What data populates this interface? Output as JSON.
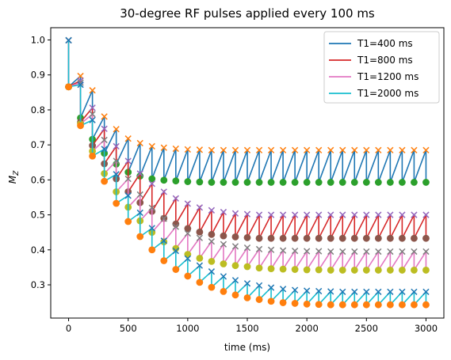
{
  "chart_data": {
    "type": "line",
    "title": "30-degree RF pulses applied every 100 ms",
    "xlabel": "time (ms)",
    "ylabel": "M",
    "ylabel_sub": "Z",
    "xlim": [
      -150,
      3150
    ],
    "ylim": [
      0.205,
      1.035
    ],
    "xticks": [
      0,
      500,
      1000,
      1500,
      2000,
      2500,
      3000
    ],
    "yticks": [
      0.3,
      0.4,
      0.5,
      0.6,
      0.7,
      0.8,
      0.9,
      1.0
    ],
    "xtick_labels": [
      "0",
      "500",
      "1000",
      "1500",
      "2000",
      "2500",
      "3000"
    ],
    "ytick_labels": [
      "0.3",
      "0.4",
      "0.5",
      "0.6",
      "0.7",
      "0.8",
      "0.9",
      "1.0"
    ],
    "grid": false,
    "legend_position": "top-right",
    "series": [
      {
        "name": "T1=400 ms",
        "color": "#1f77b4",
        "pre_color": "#ff7f0e",
        "post_color": "#2ca02c",
        "pre_pulse_x": [
          0.999,
          0.897,
          0.856,
          0.781,
          0.745,
          0.718,
          0.705,
          0.696,
          0.692,
          0.689,
          0.687,
          0.686,
          0.685,
          0.685,
          0.685,
          0.685,
          0.685,
          0.685,
          0.685,
          0.685,
          0.685,
          0.685,
          0.685,
          0.685,
          0.685,
          0.685,
          0.685,
          0.685,
          0.685,
          0.685,
          0.685
        ],
        "post_pulse_dot": [
          0.866,
          0.777,
          0.716,
          0.676,
          0.645,
          0.622,
          0.611,
          0.603,
          0.599,
          0.597,
          0.595,
          0.594,
          0.593,
          0.593,
          0.593,
          0.593,
          0.593,
          0.593,
          0.593,
          0.593,
          0.593,
          0.593,
          0.593,
          0.593,
          0.593,
          0.593,
          0.593,
          0.593,
          0.593,
          0.593,
          0.593
        ]
      },
      {
        "name": "T1=800 ms",
        "color": "#d62728",
        "pre_color": "#9467bd",
        "post_color": "#8c564b",
        "pre_pulse_x": [
          0.999,
          0.884,
          0.806,
          0.746,
          0.696,
          0.654,
          0.618,
          0.589,
          0.566,
          0.547,
          0.532,
          0.521,
          0.513,
          0.508,
          0.504,
          0.502,
          0.5,
          0.5,
          0.5,
          0.5,
          0.5,
          0.5,
          0.5,
          0.5,
          0.5,
          0.5,
          0.5,
          0.5,
          0.5,
          0.5,
          0.5
        ],
        "post_pulse_dot": [
          0.866,
          0.765,
          0.698,
          0.646,
          0.603,
          0.566,
          0.535,
          0.51,
          0.49,
          0.474,
          0.461,
          0.451,
          0.444,
          0.44,
          0.437,
          0.435,
          0.433,
          0.433,
          0.433,
          0.433,
          0.433,
          0.433,
          0.433,
          0.433,
          0.433,
          0.433,
          0.433,
          0.433,
          0.433,
          0.433,
          0.433
        ]
      },
      {
        "name": "T1=1200 ms",
        "color": "#e377c2",
        "pre_color": "#7f7f7f",
        "post_color": "#bcbd22",
        "pre_pulse_x": [
          0.999,
          0.878,
          0.788,
          0.714,
          0.654,
          0.603,
          0.558,
          0.52,
          0.489,
          0.466,
          0.447,
          0.434,
          0.424,
          0.416,
          0.41,
          0.406,
          0.402,
          0.4,
          0.398,
          0.397,
          0.396,
          0.396,
          0.395,
          0.395,
          0.395,
          0.395,
          0.395,
          0.395,
          0.395,
          0.395,
          0.395
        ],
        "post_pulse_dot": [
          0.866,
          0.76,
          0.682,
          0.618,
          0.566,
          0.522,
          0.483,
          0.45,
          0.423,
          0.404,
          0.387,
          0.376,
          0.367,
          0.36,
          0.355,
          0.352,
          0.348,
          0.346,
          0.345,
          0.344,
          0.343,
          0.343,
          0.342,
          0.342,
          0.342,
          0.342,
          0.342,
          0.342,
          0.342,
          0.342,
          0.342
        ]
      },
      {
        "name": "T1=2000 ms",
        "color": "#17becf",
        "pre_color": "#1f77b4",
        "post_color": "#ff7f0e",
        "pre_pulse_x": [
          0.999,
          0.872,
          0.771,
          0.688,
          0.616,
          0.555,
          0.506,
          0.462,
          0.426,
          0.397,
          0.375,
          0.355,
          0.338,
          0.324,
          0.313,
          0.304,
          0.298,
          0.292,
          0.288,
          0.285,
          0.283,
          0.282,
          0.281,
          0.28,
          0.28,
          0.28,
          0.28,
          0.28,
          0.28,
          0.28,
          0.28
        ],
        "post_pulse_dot": [
          0.866,
          0.755,
          0.668,
          0.596,
          0.533,
          0.481,
          0.438,
          0.4,
          0.369,
          0.344,
          0.325,
          0.307,
          0.293,
          0.281,
          0.271,
          0.263,
          0.258,
          0.253,
          0.249,
          0.247,
          0.245,
          0.244,
          0.243,
          0.243,
          0.243,
          0.243,
          0.243,
          0.243,
          0.243,
          0.243,
          0.243
        ]
      }
    ],
    "x_step": 100
  }
}
